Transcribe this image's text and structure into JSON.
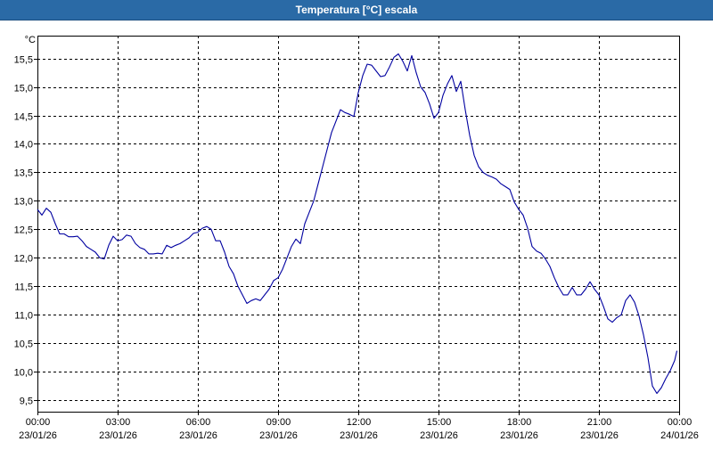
{
  "window": {
    "title": "Temperatura [°C] escala"
  },
  "chart_data": {
    "type": "line",
    "title": "Temperatura [°C] escala",
    "ylabel": "°C",
    "xlabel": "",
    "xlim": [
      "2026-01-23T00:00",
      "2026-01-24T00:00"
    ],
    "ylim": [
      9.3,
      15.9
    ],
    "grid": true,
    "y_ticks": [
      "9,5",
      "10,0",
      "10,5",
      "11,0",
      "11,5",
      "12,0",
      "12,5",
      "13,0",
      "13,5",
      "14,0",
      "14,5",
      "15,0",
      "15,5"
    ],
    "y_tick_values": [
      9.5,
      10.0,
      10.5,
      11.0,
      11.5,
      12.0,
      12.5,
      13.0,
      13.5,
      14.0,
      14.5,
      15.0,
      15.5
    ],
    "x_ticks": [
      {
        "time": "00:00",
        "date": "23/01/26"
      },
      {
        "time": "03:00",
        "date": "23/01/26"
      },
      {
        "time": "06:00",
        "date": "23/01/26"
      },
      {
        "time": "09:00",
        "date": "23/01/26"
      },
      {
        "time": "12:00",
        "date": "23/01/26"
      },
      {
        "time": "15:00",
        "date": "23/01/26"
      },
      {
        "time": "18:00",
        "date": "23/01/26"
      },
      {
        "time": "21:00",
        "date": "23/01/26"
      },
      {
        "time": "00:00",
        "date": "24/01/26"
      }
    ],
    "series": [
      {
        "color": "#0000a0",
        "points": [
          [
            "2026-01-23T00:00",
            12.85
          ],
          [
            "2026-01-23T00:10",
            12.75
          ],
          [
            "2026-01-23T00:20",
            12.87
          ],
          [
            "2026-01-23T00:30",
            12.8
          ],
          [
            "2026-01-23T00:40",
            12.6
          ],
          [
            "2026-01-23T00:50",
            12.42
          ],
          [
            "2026-01-23T01:00",
            12.42
          ],
          [
            "2026-01-23T01:10",
            12.37
          ],
          [
            "2026-01-23T01:20",
            12.37
          ],
          [
            "2026-01-23T01:30",
            12.38
          ],
          [
            "2026-01-23T01:40",
            12.3
          ],
          [
            "2026-01-23T01:50",
            12.2
          ],
          [
            "2026-01-23T02:00",
            12.15
          ],
          [
            "2026-01-23T02:10",
            12.1
          ],
          [
            "2026-01-23T02:20",
            12.0
          ],
          [
            "2026-01-23T02:30",
            11.98
          ],
          [
            "2026-01-23T02:40",
            12.22
          ],
          [
            "2026-01-23T02:50",
            12.38
          ],
          [
            "2026-01-23T03:00",
            12.3
          ],
          [
            "2026-01-23T03:10",
            12.32
          ],
          [
            "2026-01-23T03:20",
            12.4
          ],
          [
            "2026-01-23T03:30",
            12.38
          ],
          [
            "2026-01-23T03:40",
            12.25
          ],
          [
            "2026-01-23T03:50",
            12.18
          ],
          [
            "2026-01-23T04:00",
            12.15
          ],
          [
            "2026-01-23T04:10",
            12.07
          ],
          [
            "2026-01-23T04:20",
            12.07
          ],
          [
            "2026-01-23T04:30",
            12.08
          ],
          [
            "2026-01-23T04:40",
            12.07
          ],
          [
            "2026-01-23T04:50",
            12.22
          ],
          [
            "2026-01-23T05:00",
            12.18
          ],
          [
            "2026-01-23T05:10",
            12.22
          ],
          [
            "2026-01-23T05:20",
            12.25
          ],
          [
            "2026-01-23T05:30",
            12.3
          ],
          [
            "2026-01-23T05:40",
            12.35
          ],
          [
            "2026-01-23T05:50",
            12.43
          ],
          [
            "2026-01-23T06:00",
            12.45
          ],
          [
            "2026-01-23T06:10",
            12.52
          ],
          [
            "2026-01-23T06:20",
            12.55
          ],
          [
            "2026-01-23T06:30",
            12.5
          ],
          [
            "2026-01-23T06:40",
            12.3
          ],
          [
            "2026-01-23T06:50",
            12.3
          ],
          [
            "2026-01-23T07:00",
            12.1
          ],
          [
            "2026-01-23T07:10",
            11.85
          ],
          [
            "2026-01-23T07:20",
            11.72
          ],
          [
            "2026-01-23T07:30",
            11.5
          ],
          [
            "2026-01-23T07:40",
            11.35
          ],
          [
            "2026-01-23T07:50",
            11.2
          ],
          [
            "2026-01-23T08:00",
            11.25
          ],
          [
            "2026-01-23T08:10",
            11.28
          ],
          [
            "2026-01-23T08:20",
            11.25
          ],
          [
            "2026-01-23T08:30",
            11.35
          ],
          [
            "2026-01-23T08:40",
            11.45
          ],
          [
            "2026-01-23T08:50",
            11.6
          ],
          [
            "2026-01-23T09:00",
            11.65
          ],
          [
            "2026-01-23T09:10",
            11.8
          ],
          [
            "2026-01-23T09:20",
            12.0
          ],
          [
            "2026-01-23T09:30",
            12.2
          ],
          [
            "2026-01-23T09:40",
            12.33
          ],
          [
            "2026-01-23T09:50",
            12.25
          ],
          [
            "2026-01-23T10:00",
            12.6
          ],
          [
            "2026-01-23T10:10",
            12.8
          ],
          [
            "2026-01-23T10:20",
            13.0
          ],
          [
            "2026-01-23T10:30",
            13.3
          ],
          [
            "2026-01-23T10:40",
            13.6
          ],
          [
            "2026-01-23T10:50",
            13.9
          ],
          [
            "2026-01-23T11:00",
            14.2
          ],
          [
            "2026-01-23T11:10",
            14.4
          ],
          [
            "2026-01-23T11:20",
            14.6
          ],
          [
            "2026-01-23T11:30",
            14.55
          ],
          [
            "2026-01-23T11:40",
            14.52
          ],
          [
            "2026-01-23T11:50",
            14.48
          ],
          [
            "2026-01-23T12:00",
            14.9
          ],
          [
            "2026-01-23T12:10",
            15.2
          ],
          [
            "2026-01-23T12:20",
            15.4
          ],
          [
            "2026-01-23T12:30",
            15.38
          ],
          [
            "2026-01-23T12:40",
            15.28
          ],
          [
            "2026-01-23T12:50",
            15.18
          ],
          [
            "2026-01-23T13:00",
            15.2
          ],
          [
            "2026-01-23T13:10",
            15.35
          ],
          [
            "2026-01-23T13:20",
            15.52
          ],
          [
            "2026-01-23T13:30",
            15.58
          ],
          [
            "2026-01-23T13:40",
            15.45
          ],
          [
            "2026-01-23T13:50",
            15.28
          ],
          [
            "2026-01-23T14:00",
            15.55
          ],
          [
            "2026-01-23T14:10",
            15.25
          ],
          [
            "2026-01-23T14:20",
            15.0
          ],
          [
            "2026-01-23T14:30",
            14.9
          ],
          [
            "2026-01-23T14:40",
            14.7
          ],
          [
            "2026-01-23T14:50",
            14.45
          ],
          [
            "2026-01-23T15:00",
            14.55
          ],
          [
            "2026-01-23T15:10",
            14.85
          ],
          [
            "2026-01-23T15:20",
            15.05
          ],
          [
            "2026-01-23T15:30",
            15.2
          ],
          [
            "2026-01-23T15:40",
            14.92
          ],
          [
            "2026-01-23T15:50",
            15.1
          ],
          [
            "2026-01-23T16:00",
            14.6
          ],
          [
            "2026-01-23T16:10",
            14.15
          ],
          [
            "2026-01-23T16:20",
            13.8
          ],
          [
            "2026-01-23T16:30",
            13.6
          ],
          [
            "2026-01-23T16:40",
            13.5
          ],
          [
            "2026-01-23T16:50",
            13.45
          ],
          [
            "2026-01-23T17:00",
            13.42
          ],
          [
            "2026-01-23T17:10",
            13.38
          ],
          [
            "2026-01-23T17:20",
            13.3
          ],
          [
            "2026-01-23T17:30",
            13.25
          ],
          [
            "2026-01-23T17:40",
            13.2
          ],
          [
            "2026-01-23T17:50",
            12.98
          ],
          [
            "2026-01-23T18:00",
            12.85
          ],
          [
            "2026-01-23T18:10",
            12.75
          ],
          [
            "2026-01-23T18:20",
            12.52
          ],
          [
            "2026-01-23T18:30",
            12.2
          ],
          [
            "2026-01-23T18:40",
            12.12
          ],
          [
            "2026-01-23T18:50",
            12.08
          ],
          [
            "2026-01-23T19:00",
            11.98
          ],
          [
            "2026-01-23T19:10",
            11.85
          ],
          [
            "2026-01-23T19:20",
            11.65
          ],
          [
            "2026-01-23T19:30",
            11.48
          ],
          [
            "2026-01-23T19:40",
            11.35
          ],
          [
            "2026-01-23T19:50",
            11.35
          ],
          [
            "2026-01-23T20:00",
            11.48
          ],
          [
            "2026-01-23T20:10",
            11.35
          ],
          [
            "2026-01-23T20:20",
            11.35
          ],
          [
            "2026-01-23T20:30",
            11.45
          ],
          [
            "2026-01-23T20:40",
            11.58
          ],
          [
            "2026-01-23T20:50",
            11.45
          ],
          [
            "2026-01-23T21:00",
            11.35
          ],
          [
            "2026-01-23T21:10",
            11.15
          ],
          [
            "2026-01-23T21:20",
            10.93
          ],
          [
            "2026-01-23T21:30",
            10.87
          ],
          [
            "2026-01-23T21:40",
            10.95
          ],
          [
            "2026-01-23T21:50",
            11.0
          ],
          [
            "2026-01-23T22:00",
            11.25
          ],
          [
            "2026-01-23T22:10",
            11.35
          ],
          [
            "2026-01-23T22:20",
            11.22
          ],
          [
            "2026-01-23T22:30",
            10.98
          ],
          [
            "2026-01-23T22:40",
            10.65
          ],
          [
            "2026-01-23T22:50",
            10.25
          ],
          [
            "2026-01-23T23:00",
            9.75
          ],
          [
            "2026-01-23T23:10",
            9.62
          ],
          [
            "2026-01-23T23:20",
            9.72
          ],
          [
            "2026-01-23T23:30",
            9.88
          ],
          [
            "2026-01-23T23:40",
            10.02
          ],
          [
            "2026-01-23T23:50",
            10.2
          ],
          [
            "2026-01-23T23:55",
            10.37
          ]
        ]
      }
    ]
  }
}
